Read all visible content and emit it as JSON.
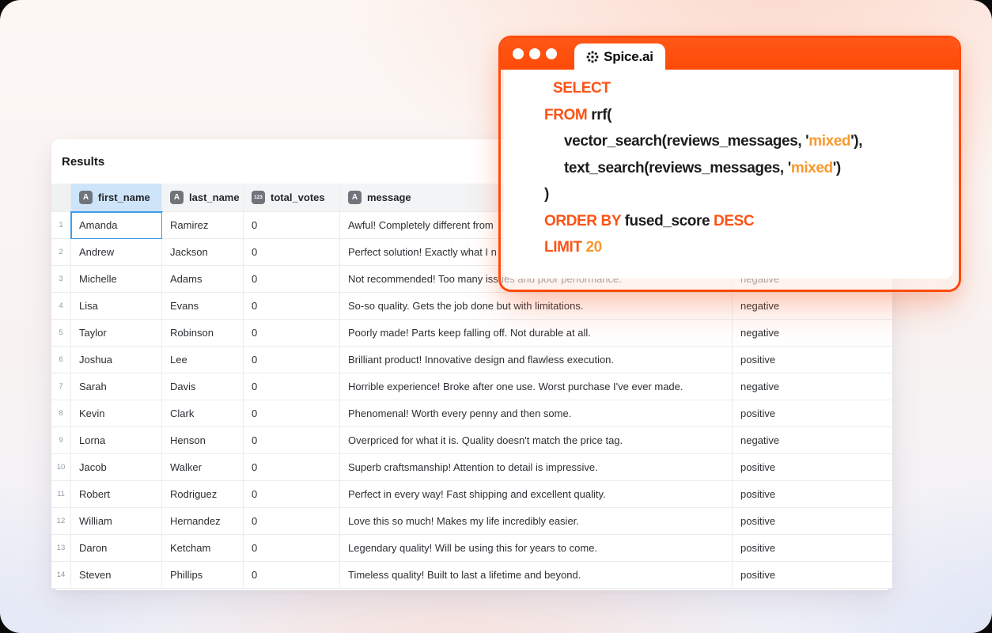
{
  "colors": {
    "accent_orange": "#FF4B0C",
    "string_amber": "#F79A2E",
    "selected_blue": "#3F9CE8",
    "header_gray": "#F3F4F5",
    "selected_header_blue": "#CEE4F8"
  },
  "table": {
    "title": "Results",
    "columns": [
      {
        "key": "num",
        "label": "",
        "badge": ""
      },
      {
        "key": "first_name",
        "label": "first_name",
        "badge": "A"
      },
      {
        "key": "last_name",
        "label": "last_name",
        "badge": "A"
      },
      {
        "key": "total_votes",
        "label": "total_votes",
        "badge": "123"
      },
      {
        "key": "message",
        "label": "message",
        "badge": "A"
      },
      {
        "key": "sentiment",
        "label": "",
        "badge": ""
      }
    ],
    "selected": {
      "row": 1,
      "column": "first_name"
    },
    "rows": [
      {
        "num": "1",
        "first_name": "Amanda",
        "last_name": "Ramirez",
        "total_votes": "0",
        "message": "Awful! Completely different from",
        "sentiment": ""
      },
      {
        "num": "2",
        "first_name": "Andrew",
        "last_name": "Jackson",
        "total_votes": "0",
        "message": "Perfect solution! Exactly what I n",
        "sentiment": ""
      },
      {
        "num": "3",
        "first_name": "Michelle",
        "last_name": "Adams",
        "total_votes": "0",
        "message": "Not recommended! Too many issues and poor performance.",
        "sentiment": "negative"
      },
      {
        "num": "4",
        "first_name": "Lisa",
        "last_name": "Evans",
        "total_votes": "0",
        "message": "So-so quality. Gets the job done but with limitations.",
        "sentiment": "negative"
      },
      {
        "num": "5",
        "first_name": "Taylor",
        "last_name": "Robinson",
        "total_votes": "0",
        "message": "Poorly made! Parts keep falling off. Not durable at all.",
        "sentiment": "negative"
      },
      {
        "num": "6",
        "first_name": "Joshua",
        "last_name": "Lee",
        "total_votes": "0",
        "message": "Brilliant product! Innovative design and flawless execution.",
        "sentiment": "positive"
      },
      {
        "num": "7",
        "first_name": "Sarah",
        "last_name": "Davis",
        "total_votes": "0",
        "message": "Horrible experience! Broke after one use. Worst purchase I've ever made.",
        "sentiment": "negative"
      },
      {
        "num": "8",
        "first_name": "Kevin",
        "last_name": "Clark",
        "total_votes": "0",
        "message": "Phenomenal! Worth every penny and then some.",
        "sentiment": "positive"
      },
      {
        "num": "9",
        "first_name": "Lorna",
        "last_name": "Henson",
        "total_votes": "0",
        "message": "Overpriced for what it is. Quality doesn't match the price tag.",
        "sentiment": "negative"
      },
      {
        "num": "10",
        "first_name": "Jacob",
        "last_name": "Walker",
        "total_votes": "0",
        "message": "Superb craftsmanship! Attention to detail is impressive.",
        "sentiment": "positive"
      },
      {
        "num": "11",
        "first_name": "Robert",
        "last_name": "Rodriguez",
        "total_votes": "0",
        "message": "Perfect in every way! Fast shipping and excellent quality.",
        "sentiment": "positive"
      },
      {
        "num": "12",
        "first_name": "William",
        "last_name": "Hernandez",
        "total_votes": "0",
        "message": "Love this so much! Makes my life incredibly easier.",
        "sentiment": "positive"
      },
      {
        "num": "13",
        "first_name": "Daron",
        "last_name": "Ketcham",
        "total_votes": "0",
        "message": "Legendary quality! Will be using this for years to come.",
        "sentiment": "positive"
      },
      {
        "num": "14",
        "first_name": "Steven",
        "last_name": "Phillips",
        "total_votes": "0",
        "message": "Timeless quality! Built to last a lifetime and beyond.",
        "sentiment": "positive"
      }
    ]
  },
  "code_window": {
    "tab_label": "Spice.ai",
    "logo_icon": "spice-ai-logo",
    "window_controls": [
      "dot",
      "dot",
      "dot"
    ],
    "lines": [
      {
        "segments": [
          {
            "text": "SELECT",
            "role": "kw"
          }
        ]
      },
      {
        "segments": [
          {
            "text": "FROM ",
            "role": "kw"
          },
          {
            "text": "rrf(",
            "role": "plain"
          }
        ]
      },
      {
        "segments": [
          {
            "text": "vector_search(reviews_messages, '",
            "role": "plain"
          },
          {
            "text": "mixed",
            "role": "str"
          },
          {
            "text": "'),",
            "role": "plain"
          }
        ]
      },
      {
        "segments": [
          {
            "text": "text_search(reviews_messages, '",
            "role": "plain"
          },
          {
            "text": "mixed",
            "role": "str"
          },
          {
            "text": "')",
            "role": "plain"
          }
        ]
      },
      {
        "segments": [
          {
            "text": ")",
            "role": "plain"
          }
        ]
      },
      {
        "segments": [
          {
            "text": "ORDER BY ",
            "role": "kw"
          },
          {
            "text": "fused_score ",
            "role": "plain"
          },
          {
            "text": "DESC",
            "role": "kw"
          }
        ]
      },
      {
        "segments": [
          {
            "text": "LIMIT ",
            "role": "kw"
          },
          {
            "text": "20",
            "role": "str"
          }
        ]
      }
    ]
  }
}
